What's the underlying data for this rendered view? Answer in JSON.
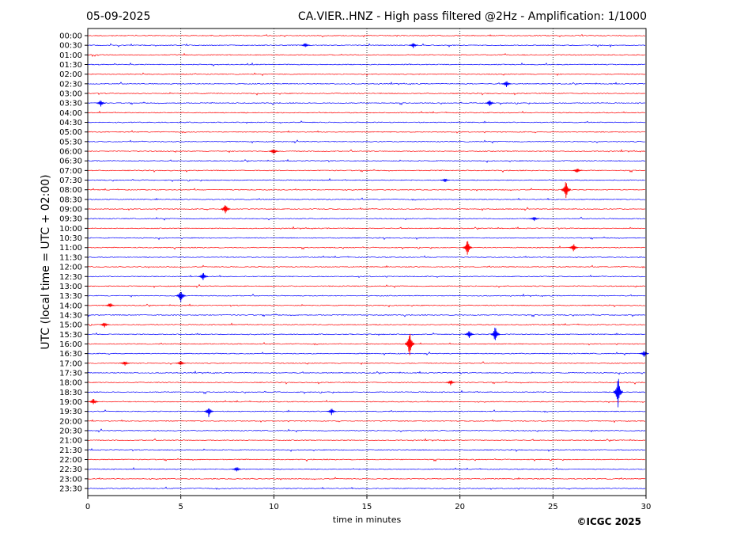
{
  "header": {
    "date": "05-09-2025",
    "title": "CA.VIER..HNZ - High pass filtered @2Hz - Amplification: 1/1000"
  },
  "footer": {
    "copyright": "©ICGC 2025"
  },
  "chart_data": {
    "type": "line",
    "title": "CA.VIER..HNZ - High pass filtered @2Hz - Amplification: 1/1000",
    "subtitle": "05-09-2025",
    "xlabel": "time in minutes",
    "ylabel": "UTC (local time = UTC + 02:00)",
    "xlim": [
      0,
      30
    ],
    "xticks": [
      "0",
      "5",
      "10",
      "15",
      "20",
      "25",
      "30"
    ],
    "grid": "vertical dotted at x = 5, 10, 15, 20, 25",
    "trace_colors": [
      "#ff0000",
      "#0000ff"
    ],
    "rows": [
      "00:00",
      "00:30",
      "01:00",
      "01:30",
      "02:00",
      "02:30",
      "03:00",
      "03:30",
      "04:00",
      "04:30",
      "05:00",
      "05:30",
      "06:00",
      "06:30",
      "07:00",
      "07:30",
      "08:00",
      "08:30",
      "09:00",
      "09:30",
      "10:00",
      "10:30",
      "11:00",
      "11:30",
      "12:00",
      "12:30",
      "13:00",
      "13:30",
      "14:00",
      "14:30",
      "15:00",
      "15:30",
      "16:00",
      "16:30",
      "17:00",
      "17:30",
      "18:00",
      "18:30",
      "19:00",
      "19:30",
      "20:00",
      "20:30",
      "21:00",
      "21:30",
      "22:00",
      "22:30",
      "23:00",
      "23:30"
    ],
    "events": [
      {
        "row": 1,
        "x": 11.7,
        "amp": 0.3
      },
      {
        "row": 1,
        "x": 17.5,
        "amp": 0.3
      },
      {
        "row": 5,
        "x": 22.5,
        "amp": 0.4
      },
      {
        "row": 7,
        "x": 0.7,
        "amp": 0.4
      },
      {
        "row": 7,
        "x": 21.6,
        "amp": 0.4
      },
      {
        "row": 12,
        "x": 10.0,
        "amp": 0.4
      },
      {
        "row": 14,
        "x": 26.3,
        "amp": 0.3
      },
      {
        "row": 15,
        "x": 19.2,
        "amp": 0.2
      },
      {
        "row": 16,
        "x": 25.7,
        "amp": 1.2
      },
      {
        "row": 18,
        "x": 7.4,
        "amp": 0.7
      },
      {
        "row": 19,
        "x": 24.0,
        "amp": 0.3
      },
      {
        "row": 22,
        "x": 20.4,
        "amp": 1.0
      },
      {
        "row": 22,
        "x": 26.1,
        "amp": 0.5
      },
      {
        "row": 25,
        "x": 6.2,
        "amp": 0.5
      },
      {
        "row": 27,
        "x": 5.0,
        "amp": 0.8
      },
      {
        "row": 28,
        "x": 1.2,
        "amp": 0.3
      },
      {
        "row": 30,
        "x": 0.9,
        "amp": 0.3
      },
      {
        "row": 31,
        "x": 20.5,
        "amp": 0.5
      },
      {
        "row": 31,
        "x": 21.9,
        "amp": 1.0
      },
      {
        "row": 32,
        "x": 17.3,
        "amp": 1.8
      },
      {
        "row": 33,
        "x": 29.9,
        "amp": 0.4
      },
      {
        "row": 34,
        "x": 2.0,
        "amp": 0.3
      },
      {
        "row": 34,
        "x": 5.0,
        "amp": 0.3
      },
      {
        "row": 36,
        "x": 19.5,
        "amp": 0.3
      },
      {
        "row": 37,
        "x": 28.5,
        "amp": 2.0
      },
      {
        "row": 38,
        "x": 0.3,
        "amp": 0.4
      },
      {
        "row": 39,
        "x": 6.5,
        "amp": 0.6
      },
      {
        "row": 39,
        "x": 13.1,
        "amp": 0.4
      },
      {
        "row": 45,
        "x": 8.0,
        "amp": 0.3
      }
    ]
  }
}
